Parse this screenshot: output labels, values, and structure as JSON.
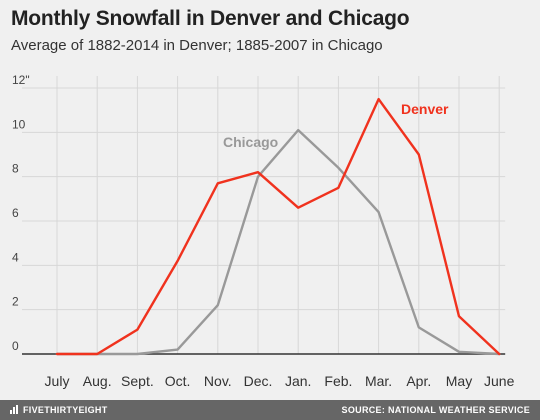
{
  "header": {
    "title": "Monthly Snowfall in Denver and Chicago",
    "subtitle": "Average of 1882-2014 in Denver; 1885-2007 in Chicago"
  },
  "footer": {
    "brand": "FIVETHIRTYEIGHT",
    "source": "SOURCE: NATIONAL WEATHER SERVICE"
  },
  "colors": {
    "denver": "#f0321e",
    "chicago": "#999999",
    "grid": "#d7d7d7",
    "baseline": "#333333"
  },
  "chart_data": {
    "type": "line",
    "title": "Monthly Snowfall in Denver and Chicago",
    "subtitle": "Average of 1882-2014 in Denver; 1885-2007 in Chicago",
    "xlabel": "",
    "ylabel": "",
    "categories": [
      "July",
      "Aug.",
      "Sept.",
      "Oct.",
      "Nov.",
      "Dec.",
      "Jan.",
      "Feb.",
      "Mar.",
      "Apr.",
      "May",
      "June"
    ],
    "ylim": [
      0,
      12
    ],
    "yticks": [
      "0",
      "2",
      "4",
      "6",
      "8",
      "10",
      "12\""
    ],
    "grid": true,
    "legend": "direct labels on lines",
    "series": [
      {
        "name": "Denver",
        "color": "#f0321e",
        "values": [
          0,
          0,
          1.1,
          4.2,
          7.7,
          8.2,
          6.6,
          7.5,
          11.5,
          9.0,
          1.7,
          0
        ]
      },
      {
        "name": "Chicago",
        "color": "#999999",
        "values": [
          0,
          0,
          0,
          0.2,
          2.2,
          8.0,
          10.1,
          8.4,
          6.4,
          1.2,
          0.1,
          0
        ]
      }
    ]
  }
}
